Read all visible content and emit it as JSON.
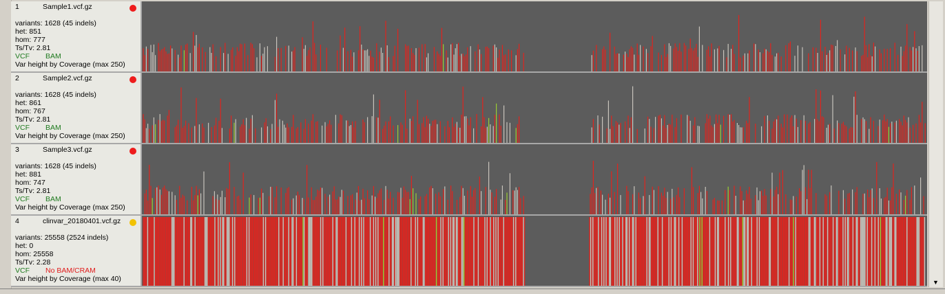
{
  "tracks": [
    {
      "index": "1",
      "filename": "Sample1.vcf.gz",
      "status_color": "#ee1c1c",
      "variants": "variants: 1628 (45 indels)",
      "het": "het: 851",
      "hom": "hom: 777",
      "tstv": "Ts/Tv: 2.81",
      "vcf_label": "VCF",
      "bam_label": "BAM",
      "bam_missing": false,
      "height_mode": "Var height by Coverage (max 250)"
    },
    {
      "index": "2",
      "filename": "Sample2.vcf.gz",
      "status_color": "#ee1c1c",
      "variants": "variants: 1628 (45 indels)",
      "het": "het: 861",
      "hom": "hom: 767",
      "tstv": "Ts/Tv: 2.81",
      "vcf_label": "VCF",
      "bam_label": "BAM",
      "bam_missing": false,
      "height_mode": "Var height by Coverage (max 250)"
    },
    {
      "index": "3",
      "filename": "Sample3.vcf.gz",
      "status_color": "#ee1c1c",
      "variants": "variants: 1628 (45 indels)",
      "het": "het: 881",
      "hom": "hom: 747",
      "tstv": "Ts/Tv: 2.81",
      "vcf_label": "VCF",
      "bam_label": "BAM",
      "bam_missing": false,
      "height_mode": "Var height by Coverage (max 250)"
    },
    {
      "index": "4",
      "filename": "clinvar_20180401.vcf.gz",
      "status_color": "#f2c200",
      "variants": "variants: 25558 (2524 indels)",
      "het": "het: 0",
      "hom": "hom: 25558",
      "tstv": "Ts/Tv: 2.28",
      "vcf_label": "VCF",
      "bam_label": "No BAM/CRAM",
      "bam_missing": true,
      "height_mode": "Var height by Coverage (max 40)"
    }
  ],
  "colors": {
    "plot_background": "#5c5c5c",
    "het_variant": "#e0241e",
    "hom_variant": "#c8c4bc",
    "other_variant": "#9acd32"
  },
  "scrollbar": {
    "down_icon": "triangle-down"
  }
}
